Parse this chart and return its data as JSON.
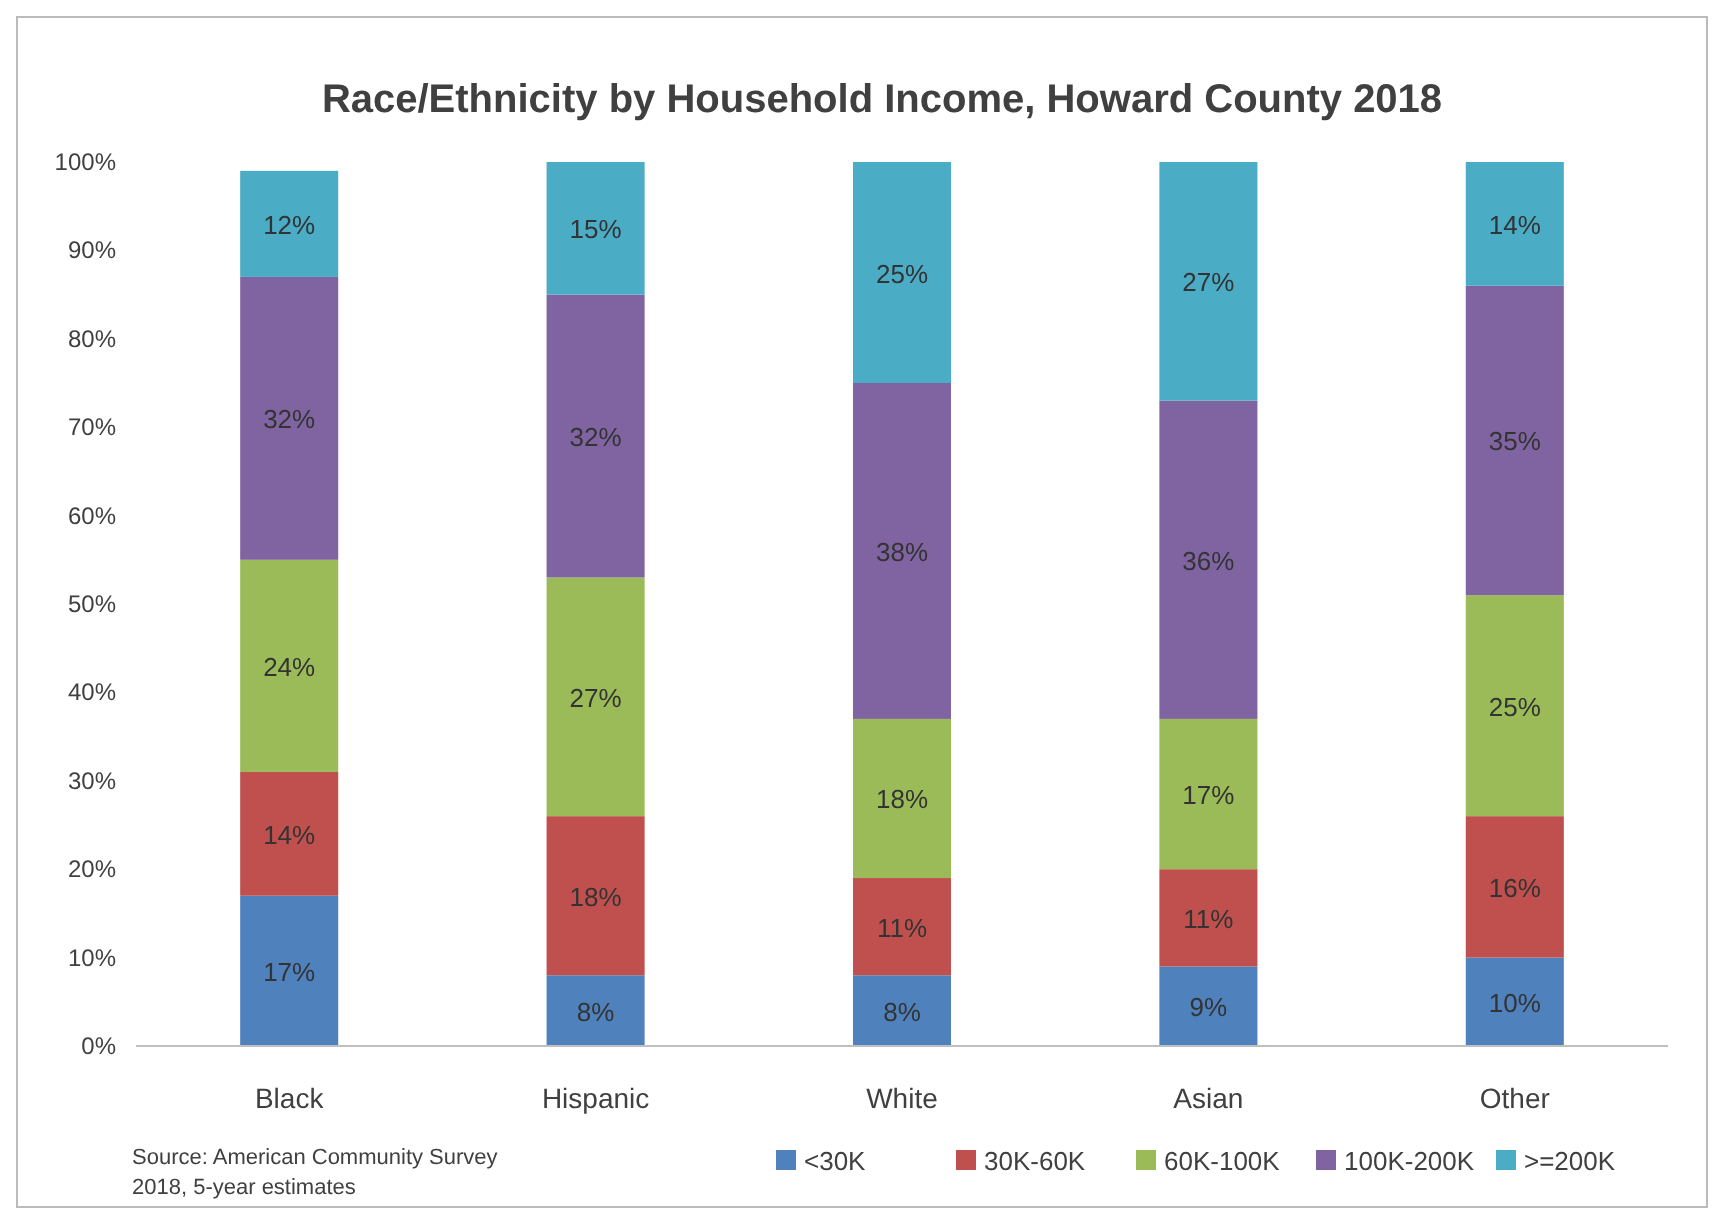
{
  "chart_data": {
    "type": "bar",
    "stacked": true,
    "title": "Race/Ethnicity by Household Income, Howard County 2018",
    "categories": [
      "Black",
      "Hispanic",
      "White",
      "Asian",
      "Other"
    ],
    "series": [
      {
        "name": "<30K",
        "color": "#4f81bd",
        "values": [
          17,
          8,
          8,
          9,
          10
        ]
      },
      {
        "name": "30K-60K",
        "color": "#c0504d",
        "values": [
          14,
          18,
          11,
          11,
          16
        ]
      },
      {
        "name": "60K-100K",
        "color": "#9bbb59",
        "values": [
          24,
          27,
          18,
          17,
          25
        ]
      },
      {
        "name": "100K-200K",
        "color": "#8064a2",
        "values": [
          32,
          32,
          38,
          36,
          35
        ]
      },
      {
        "name": ">=200K",
        "color": "#4bacc6",
        "values": [
          12,
          15,
          25,
          27,
          14
        ]
      }
    ],
    "ylim": [
      0,
      100
    ],
    "yticks": [
      {
        "value": 0,
        "label": "0%"
      },
      {
        "value": 10,
        "label": "10%"
      },
      {
        "value": 20,
        "label": "20%"
      },
      {
        "value": 30,
        "label": "30%"
      },
      {
        "value": 40,
        "label": "40%"
      },
      {
        "value": 50,
        "label": "50%"
      },
      {
        "value": 60,
        "label": "60%"
      },
      {
        "value": 70,
        "label": "70%"
      },
      {
        "value": 80,
        "label": "80%"
      },
      {
        "value": 90,
        "label": "90%"
      },
      {
        "value": 100,
        "label": "100%"
      }
    ],
    "value_labels": [
      [
        "17%",
        "8%",
        "8%",
        "9%",
        "10%"
      ],
      [
        "14%",
        "18%",
        "11%",
        "11%",
        "16%"
      ],
      [
        "24%",
        "27%",
        "18%",
        "17%",
        "25%"
      ],
      [
        "32%",
        "32%",
        "38%",
        "36%",
        "35%"
      ],
      [
        "12%",
        "15%",
        "25%",
        "27%",
        "14%"
      ]
    ],
    "legend": "bottom",
    "grid": false,
    "annotations": [
      "Source:  American Community Survey",
      "2018, 5-year estimates"
    ]
  }
}
